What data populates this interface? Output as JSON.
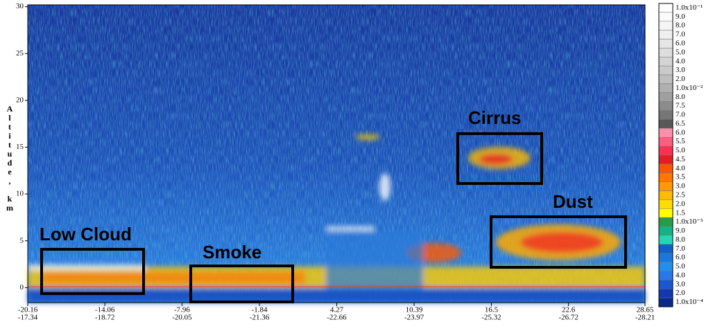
{
  "chart_data": {
    "type": "heatmap",
    "y_label": "Altitude, km",
    "ylim": [
      -1.6,
      30.2
    ],
    "yticks": [
      0,
      5,
      10,
      15,
      20,
      25,
      30
    ],
    "xlim": [
      -20.16,
      28.65
    ],
    "xticks": [
      {
        "lat": -20.16,
        "lon": -17.34
      },
      {
        "lat": -14.06,
        "lon": -18.72
      },
      {
        "lat": -7.96,
        "lon": -20.05
      },
      {
        "lat": -1.84,
        "lon": -21.36
      },
      {
        "lat": 4.27,
        "lon": -22.66
      },
      {
        "lat": 10.39,
        "lon": -23.97
      },
      {
        "lat": 16.5,
        "lon": -25.32
      },
      {
        "lat": 22.6,
        "lon": -26.72
      },
      {
        "lat": 28.65,
        "lon": -28.21
      }
    ],
    "annotations": [
      "Low Cloud",
      "Smoke",
      "Cirrus",
      "Dust"
    ],
    "colorbar": [
      {
        "label": "1.0x10⁻¹",
        "color": "#ffffff"
      },
      {
        "label": "9.0",
        "color": "#fbfbfb"
      },
      {
        "label": "8.0",
        "color": "#f5f5f5"
      },
      {
        "label": "7.0",
        "color": "#eeeeee"
      },
      {
        "label": "6.0",
        "color": "#e6e6e6"
      },
      {
        "label": "5.0",
        "color": "#dddddd"
      },
      {
        "label": "4.0",
        "color": "#d4d4d4"
      },
      {
        "label": "3.0",
        "color": "#cacaca"
      },
      {
        "label": "2.0",
        "color": "#bebebe"
      },
      {
        "label": "1.0x10⁻²",
        "color": "#b0b0b0"
      },
      {
        "label": "8.0",
        "color": "#a0a0a0"
      },
      {
        "label": "7.5",
        "color": "#8c8c8c"
      },
      {
        "label": "7.0",
        "color": "#767676"
      },
      {
        "label": "6.5",
        "color": "#585858"
      },
      {
        "label": "6.0",
        "color": "#ff8fab"
      },
      {
        "label": "5.5",
        "color": "#ff5e80"
      },
      {
        "label": "5.0",
        "color": "#ff2f4f"
      },
      {
        "label": "4.5",
        "color": "#e41e1e"
      },
      {
        "label": "4.0",
        "color": "#ff5500"
      },
      {
        "label": "3.5",
        "color": "#ff7700"
      },
      {
        "label": "3.0",
        "color": "#ff9900"
      },
      {
        "label": "2.5",
        "color": "#ffbb00"
      },
      {
        "label": "2.0",
        "color": "#ffdd00"
      },
      {
        "label": "1.5",
        "color": "#ffff00"
      },
      {
        "label": "1.0x10⁻³",
        "color": "#279b4d"
      },
      {
        "label": "9.0",
        "color": "#12b384"
      },
      {
        "label": "8.0",
        "color": "#22d8b4"
      },
      {
        "label": "7.0",
        "color": "#1060c8"
      },
      {
        "label": "6.0",
        "color": "#1878e0"
      },
      {
        "label": "5.0",
        "color": "#2090f0"
      },
      {
        "label": "4.0",
        "color": "#2878e8"
      },
      {
        "label": "3.0",
        "color": "#1858d0"
      },
      {
        "label": "2.0",
        "color": "#1038b0"
      },
      {
        "label": "1.0x10⁻⁴",
        "color": "#0a2890"
      }
    ]
  }
}
